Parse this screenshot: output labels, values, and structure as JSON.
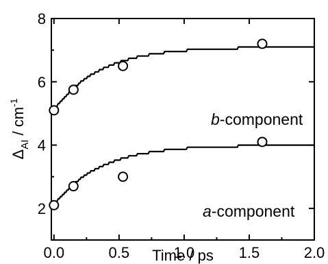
{
  "chart_data": {
    "type": "scatter",
    "x_axis": {
      "label": "Time / ps",
      "range": [
        -0.02,
        2.0
      ],
      "ticks": [
        0.0,
        0.5,
        1.0,
        1.5,
        2.0
      ],
      "tick_labels": [
        "0.0",
        "0.5",
        "1.0",
        "1.5",
        "2.0"
      ]
    },
    "y_axis": {
      "label_main": "Δ",
      "label_sub": "AI",
      "label_unit": " / cm",
      "label_sup": "-1",
      "range": [
        1,
        8
      ],
      "ticks": [
        2,
        4,
        6,
        8
      ],
      "tick_labels": [
        "2",
        "4",
        "6",
        "8"
      ]
    },
    "grid": false,
    "series": [
      {
        "name": "b-component",
        "label_italic": "b",
        "label_rest": "-component",
        "marker": "open-circle",
        "points": [
          [
            0.0,
            5.1
          ],
          [
            0.15,
            5.75
          ],
          [
            0.53,
            6.5
          ],
          [
            1.6,
            7.2
          ]
        ],
        "fit": {
          "type": "exp-rise",
          "y0": 5.1,
          "amplitude": 2.0,
          "tau": 0.35,
          "steps": 28
        }
      },
      {
        "name": "a-component",
        "label_italic": "a",
        "label_rest": "-component",
        "marker": "open-circle",
        "points": [
          [
            0.0,
            2.1
          ],
          [
            0.15,
            2.7
          ],
          [
            0.53,
            3.0
          ],
          [
            1.6,
            4.1
          ]
        ],
        "fit": {
          "type": "exp-rise",
          "y0": 2.1,
          "amplitude": 1.9,
          "tau": 0.35,
          "steps": 28
        }
      }
    ]
  }
}
